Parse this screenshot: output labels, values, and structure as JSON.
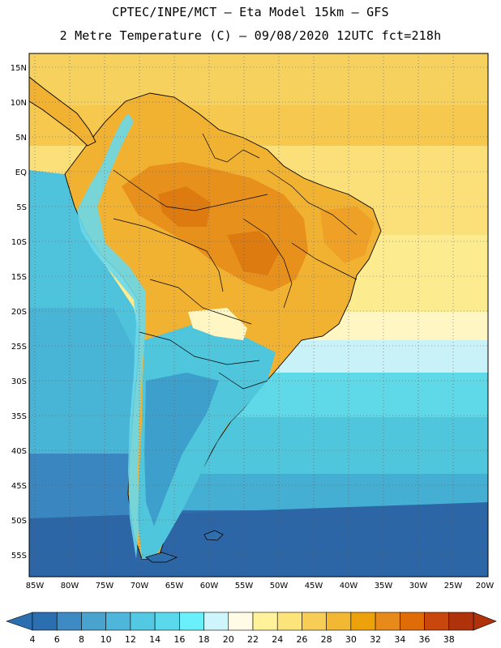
{
  "header": {
    "line1": "CPTEC/INPE/MCT –  Eta Model 15km – GFS",
    "line2": "2 Metre Temperature (C) – 09/08/2020 12UTC fct=218h"
  },
  "map": {
    "lat_labels": [
      "15N",
      "10N",
      "5N",
      "EQ",
      "5S",
      "10S",
      "15S",
      "20S",
      "25S",
      "30S",
      "35S",
      "40S",
      "45S",
      "50S",
      "55S"
    ],
    "lon_labels": [
      "85W",
      "80W",
      "75W",
      "70W",
      "65W",
      "60W",
      "55W",
      "50W",
      "45W",
      "40W",
      "35W",
      "30W",
      "25W",
      "20W"
    ]
  },
  "colorbar": {
    "labels": [
      "4",
      "6",
      "8",
      "10",
      "12",
      "14",
      "16",
      "18",
      "20",
      "22",
      "24",
      "26",
      "28",
      "30",
      "32",
      "34",
      "36",
      "38"
    ],
    "colors": [
      "#2c6fb0",
      "#3d8ac4",
      "#4aa3cf",
      "#4fb6db",
      "#52c8e2",
      "#5ad8ec",
      "#6af0fa",
      "#cdf5fb",
      "#fffbe6",
      "#fff29a",
      "#fde47a",
      "#f8cd56",
      "#f2b733",
      "#eda20c",
      "#e88a1a",
      "#e06c08",
      "#c9460c",
      "#b0320a"
    ]
  }
}
